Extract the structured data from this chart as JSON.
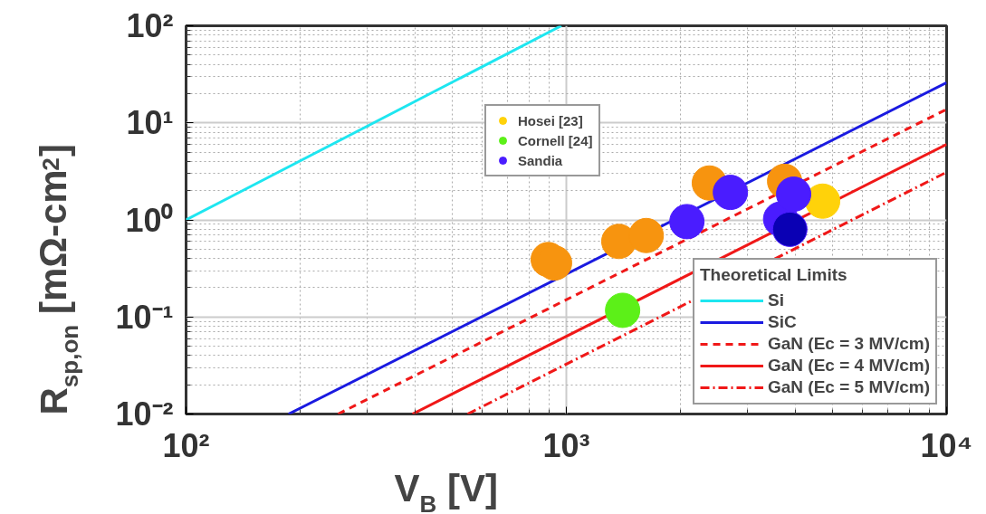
{
  "chart_data": {
    "type": "scatter",
    "xlabel": "V$_{B}$ [V]",
    "ylabel": "R$_{sp,on}$ [mΩ-cm$^{2}$]",
    "log": "xy",
    "grid": true,
    "marker": "circle",
    "legend": "bottom right",
    "legend_title": "Theoretical Limits",
    "xlim": [
      100,
      10000
    ],
    "ylim": [
      0.01,
      100
    ],
    "xticks": [
      {
        "value": 100,
        "label": "10²"
      },
      {
        "value": 1000,
        "label": "10³"
      },
      {
        "value": 10000,
        "label": "10⁴"
      }
    ],
    "yticks": [
      {
        "value": 0.01,
        "label": "10⁻²"
      },
      {
        "value": 0.1,
        "label": "10⁻¹"
      },
      {
        "value": 1,
        "label": "10⁰"
      },
      {
        "value": 10,
        "label": "10¹"
      },
      {
        "value": 100,
        "label": "10²"
      }
    ],
    "series": [
      {
        "type": "line",
        "marker": "none",
        "name": "Si",
        "color": "#1ee6f0",
        "line_style": "solid",
        "x": [
          100,
          970
        ],
        "values": [
          1,
          100
        ]
      },
      {
        "type": "line",
        "marker": "none",
        "name": "SiC",
        "color": "#1a1ae0",
        "line_style": "solid",
        "x": [
          186,
          10000
        ],
        "values": [
          0.01,
          26
        ]
      },
      {
        "type": "line",
        "marker": "none",
        "name": "GaN (Ec = 3 MV/cm)",
        "color": "#f01818",
        "line_style": "dashed",
        "x": [
          251,
          10000
        ],
        "values": [
          0.01,
          13.8
        ]
      },
      {
        "type": "line",
        "marker": "none",
        "name": "GaN (Ec = 4 MV/cm)",
        "color": "#f01818",
        "line_style": "solid",
        "x": [
          394,
          10000
        ],
        "values": [
          0.01,
          6.0
        ]
      },
      {
        "type": "line",
        "marker": "none",
        "name": "GaN (Ec = 5 MV/cm)",
        "color": "#f01818",
        "line_style": "dashdot",
        "x": [
          550,
          10000
        ],
        "values": [
          0.01,
          3.1
        ]
      },
      {
        "color": "#f7940f",
        "x": [
          896,
          931,
          1374,
          1622,
          2377,
          3750
        ],
        "values": [
          0.39,
          0.36,
          0.6,
          0.69,
          2.4,
          2.5
        ]
      },
      {
        "name": "Hosei [23]",
        "color": "#ffd20a",
        "x": [
          4720
        ],
        "values": [
          1.56
        ]
      },
      {
        "name": "Cornell [24]",
        "color": "#5cf018",
        "x": [
          1406
        ],
        "values": [
          0.117
        ]
      },
      {
        "name": "Sandia",
        "color": "#4a1cff",
        "colors": [
          "#4a1cff",
          "#4a1cff",
          "#4a1cff",
          "#4a1cff",
          "#0a00b4"
        ],
        "x": [
          2075,
          2700,
          3660,
          3960,
          3870
        ],
        "values": [
          0.96,
          1.92,
          1.02,
          1.84,
          0.8
        ]
      }
    ]
  }
}
